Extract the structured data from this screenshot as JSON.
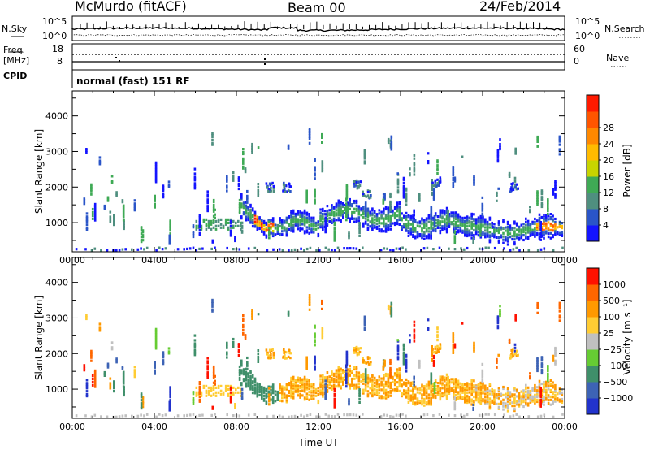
{
  "header": {
    "station": "McMurdo (fitACF)",
    "beam": "Beam 00",
    "date": "24/Feb/2014"
  },
  "status_panel": {
    "left_labels": {
      "nsky": "N.Sky",
      "freq": "Freq.",
      "mhz": "[MHz]",
      "cpid": "CPID"
    },
    "right_labels": {
      "nsearch": "N.Search",
      "nave": "Nave"
    },
    "noise_ticks": {
      "top": "10^5",
      "bottom": "10^0"
    },
    "freq_ticks": {
      "top": "18",
      "bottom": "8"
    },
    "nave_ticks": {
      "top": "60",
      "bottom": "0"
    },
    "cpid_text": "normal (fast) 151 RF"
  },
  "chart_data": [
    {
      "type": "heatmap",
      "name": "power",
      "ylabel": "Slant Range [km]",
      "xlabel": "",
      "x_ticks": [
        "00:00",
        "04:00",
        "08:00",
        "12:00",
        "16:00",
        "20:00",
        "00:00"
      ],
      "y_ticks": [
        1000,
        2000,
        3000,
        4000
      ],
      "xlim_hours": [
        0,
        24
      ],
      "ylim_km": [
        180,
        4700
      ],
      "colorbar": {
        "label": "Power [dB]",
        "ticks": [
          "4",
          "8",
          "12",
          "16",
          "20",
          "24",
          "28"
        ],
        "colors": [
          "#1414ff",
          "#2a55c8",
          "#4f8f7f",
          "#3faa55",
          "#c8d400",
          "#ffbb00",
          "#ff8800",
          "#ff5500",
          "#ff1a00"
        ]
      },
      "features": [
        {
          "desc": "main echo band",
          "start_hour": 8.2,
          "end_hour": 24,
          "range_km": [
            800,
            1500
          ]
        },
        {
          "desc": "strong echo",
          "hour": 9.3,
          "range_km": [
            700,
            1100
          ],
          "power_db": 28
        }
      ]
    },
    {
      "type": "heatmap",
      "name": "velocity",
      "ylabel": "Slant Range [km]",
      "xlabel": "Time UT",
      "x_ticks": [
        "00:00",
        "04:00",
        "08:00",
        "12:00",
        "16:00",
        "20:00",
        "00:00"
      ],
      "y_ticks": [
        1000,
        2000,
        3000,
        4000
      ],
      "xlim_hours": [
        0,
        24
      ],
      "ylim_km": [
        180,
        4700
      ],
      "colorbar": {
        "label": "Velocity [m s⁻¹]",
        "ticks": [
          "1000",
          "500",
          "100",
          "25",
          "−25",
          "−100",
          "−500",
          "−1000"
        ],
        "colors": [
          "#2233cc",
          "#3d63b5",
          "#3f8f6a",
          "#66cc33",
          "#c0c0c0",
          "#ffcc33",
          "#ff9900",
          "#ff6600",
          "#ff1100"
        ]
      }
    }
  ]
}
